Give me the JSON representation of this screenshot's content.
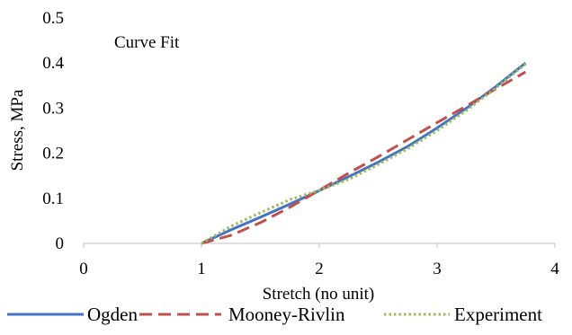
{
  "chart_data": {
    "type": "line",
    "annotation": "Curve Fit",
    "xlabel": "Stretch (no unit)",
    "ylabel": "Stress, MPa",
    "xlim": [
      0,
      4
    ],
    "ylim": [
      0,
      0.5
    ],
    "xticks": [
      "0",
      "1",
      "2",
      "3",
      "4"
    ],
    "yticks": [
      "0",
      "0.1",
      "0.2",
      "0.3",
      "0.4",
      "0.5"
    ],
    "grid": false,
    "legend_position": "bottom",
    "series": [
      {
        "name": "Ogden",
        "color": "#4472C4",
        "style": "solid",
        "x": [
          1.0,
          1.25,
          1.5,
          1.75,
          2.0,
          2.25,
          2.5,
          2.75,
          3.0,
          3.25,
          3.5,
          3.75
        ],
        "y": [
          0.0,
          0.03,
          0.058,
          0.087,
          0.117,
          0.148,
          0.18,
          0.215,
          0.256,
          0.3,
          0.348,
          0.4
        ]
      },
      {
        "name": "Mooney-Rivlin",
        "color": "#C0504D",
        "style": "dashed",
        "x": [
          1.0,
          1.25,
          1.5,
          1.75,
          2.0,
          2.25,
          2.5,
          2.75,
          3.0,
          3.25,
          3.5,
          3.75
        ],
        "y": [
          0.0,
          0.018,
          0.046,
          0.08,
          0.118,
          0.156,
          0.192,
          0.23,
          0.268,
          0.305,
          0.343,
          0.38
        ]
      },
      {
        "name": "Experiment",
        "color": "#9BBB59",
        "style": "dotted",
        "x": [
          1.0,
          1.25,
          1.5,
          1.75,
          2.0,
          2.25,
          2.5,
          2.75,
          3.0,
          3.25,
          3.5,
          3.75
        ],
        "y": [
          0.0,
          0.038,
          0.068,
          0.097,
          0.118,
          0.142,
          0.175,
          0.21,
          0.25,
          0.295,
          0.345,
          0.398
        ]
      }
    ]
  }
}
